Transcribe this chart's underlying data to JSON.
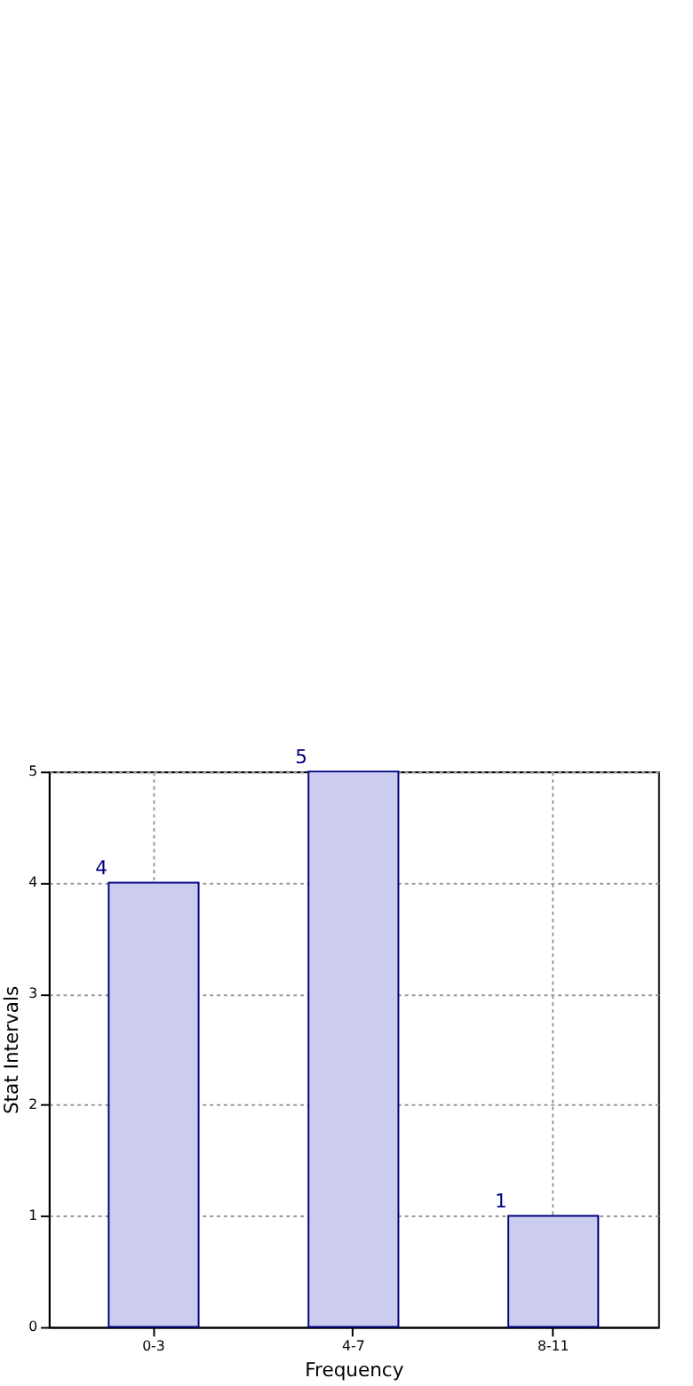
{
  "chart_data": {
    "type": "bar",
    "xlabel": "Frequency",
    "ylabel": "Stat Intervals",
    "categories": [
      "0-3",
      "4-7",
      "8-11"
    ],
    "values": [
      4,
      5,
      1
    ],
    "color": "#ccccee",
    "ylim": [
      0,
      5
    ],
    "yticks": [
      0,
      1,
      2,
      3,
      4,
      5
    ],
    "grid": true,
    "data_labels": true
  }
}
